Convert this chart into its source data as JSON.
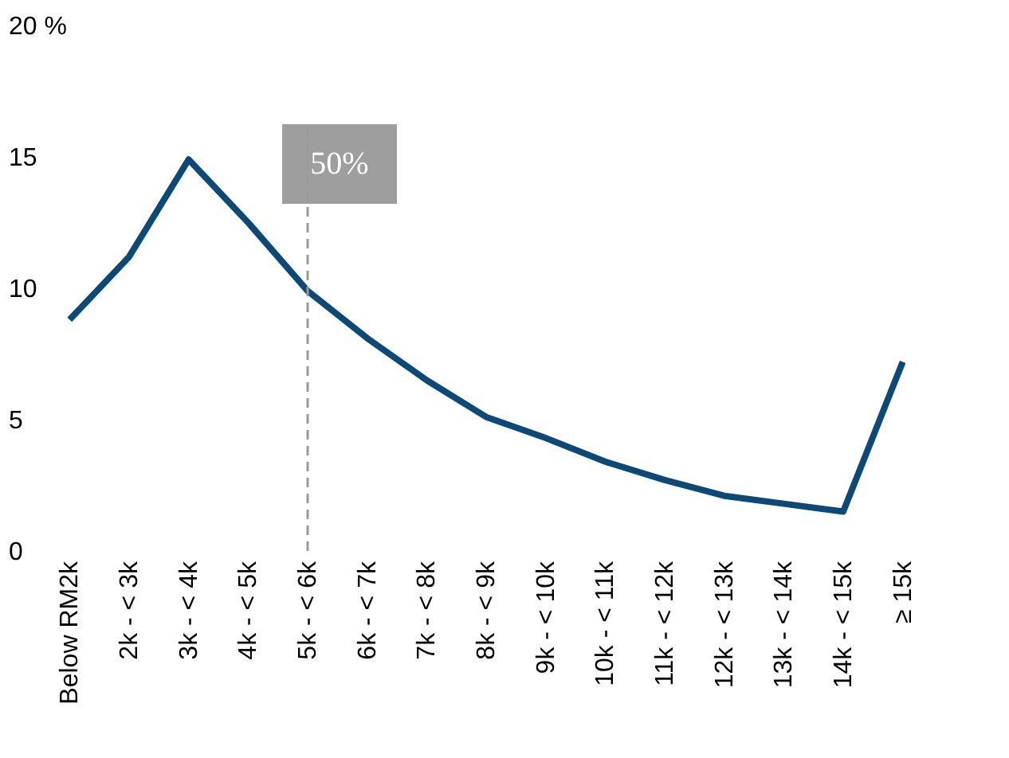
{
  "chart_data": {
    "type": "line",
    "categories": [
      "Below RM2k",
      "2k - < 3k",
      "3k - < 4k",
      "4k - < 5k",
      "5k - < 6k",
      "6k - < 7k",
      "7k - < 8k",
      "8k - < 9k",
      "9k - < 10k",
      "10k - < 11k",
      "11k - < 12k",
      "12k - < 13k",
      "13k - < 14k",
      "14k - < 15k",
      "≥ 15k"
    ],
    "series": [
      {
        "color": "#0b4a78",
        "values": [
          8.8,
          11.2,
          14.9,
          12.5,
          9.9,
          8.1,
          6.5,
          5.1,
          4.3,
          3.4,
          2.7,
          2.1,
          1.8,
          1.5,
          7.2
        ]
      }
    ],
    "ylim": [
      0,
      20
    ],
    "yticks": [
      0,
      5,
      10,
      15,
      {
        "value": 20,
        "label": "20 %"
      }
    ],
    "ref_lines": [
      {
        "axis": "x",
        "value": "5k - < 6k",
        "label": "50%",
        "color": "#999999",
        "line_style": "dashed"
      }
    ],
    "grid": false,
    "marker": "none",
    "line_style": "solid"
  }
}
